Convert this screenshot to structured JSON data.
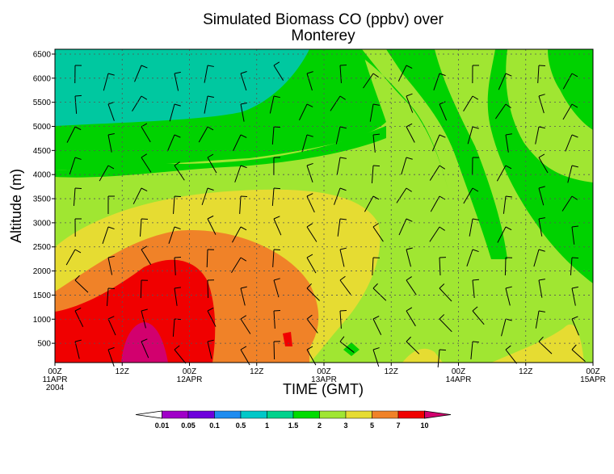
{
  "chart_data": {
    "type": "heatmap",
    "title_line1": "Simulated Biomass CO (ppbv) over",
    "title_line2": "Monterey",
    "xlabel": "TIME (GMT)",
    "ylabel": "Altitude (m)",
    "x_range_hours": [
      0,
      96
    ],
    "y_range_m": [
      100,
      6600
    ],
    "y_ticks": [
      500,
      1000,
      1500,
      2000,
      2500,
      3000,
      3500,
      4000,
      4500,
      5000,
      5500,
      6000,
      6500
    ],
    "x_ticks": [
      {
        "hour": 0,
        "label": "00Z",
        "sub1": "11APR",
        "sub2": "2004"
      },
      {
        "hour": 12,
        "label": "12Z",
        "sub1": "",
        "sub2": ""
      },
      {
        "hour": 24,
        "label": "00Z",
        "sub1": "12APR",
        "sub2": ""
      },
      {
        "hour": 36,
        "label": "12Z",
        "sub1": "",
        "sub2": ""
      },
      {
        "hour": 48,
        "label": "00Z",
        "sub1": "13APR",
        "sub2": ""
      },
      {
        "hour": 60,
        "label": "12Z",
        "sub1": "",
        "sub2": ""
      },
      {
        "hour": 72,
        "label": "00Z",
        "sub1": "14APR",
        "sub2": ""
      },
      {
        "hour": 84,
        "label": "12Z",
        "sub1": "",
        "sub2": ""
      },
      {
        "hour": 96,
        "label": "00Z",
        "sub1": "15APR",
        "sub2": ""
      }
    ],
    "grid": true,
    "colorbar": {
      "levels": [
        "0.01",
        "0.05",
        "0.1",
        "0.5",
        "1",
        "1.5",
        "2",
        "3",
        "5",
        "7",
        "10"
      ],
      "colors": [
        "#ffffff",
        "#a000c8",
        "#6e00dc",
        "#1e8cf0",
        "#00c8c8",
        "#00d28c",
        "#00dc00",
        "#a0e632",
        "#e6dc32",
        "#f08228",
        "#f00000",
        "#d2006e"
      ]
    },
    "level_colors": {
      "1": "#00c8a0",
      "1.5": "#00d200",
      "2": "#a0e632",
      "3": "#a0e632",
      "5": "#e6dc32",
      "7": "#f08228",
      "10": "#f00000",
      "max": "#d2006e"
    }
  }
}
